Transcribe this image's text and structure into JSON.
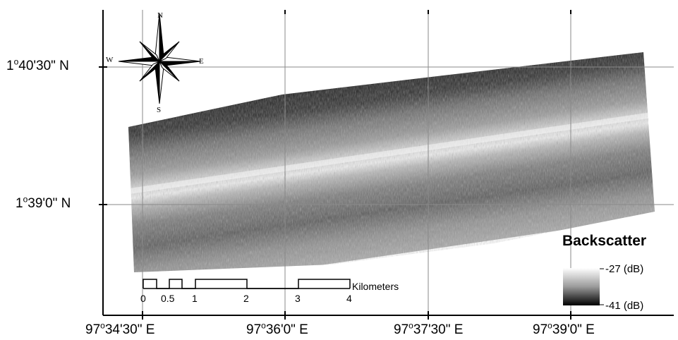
{
  "map": {
    "latitude_labels": [
      {
        "deg": "1",
        "rest": "40'30\" N"
      },
      {
        "deg": "1",
        "rest": "39'0\" N"
      }
    ],
    "longitude_labels": [
      {
        "deg": "97",
        "rest": "34'30\" E"
      },
      {
        "deg": "97",
        "rest": "36'0\" E"
      },
      {
        "deg": "97",
        "rest": "37'30\" E"
      },
      {
        "deg": "97",
        "rest": "39'0\" E"
      }
    ],
    "compass": {
      "n": "N",
      "s": "S",
      "e": "E",
      "w": "W"
    },
    "legend": {
      "title": "Backscatter",
      "high": "-27 (dB)",
      "low": "-41 (dB)"
    },
    "scale_bar": {
      "unit": "Kilometers",
      "ticks": [
        "0",
        "0.5",
        "1",
        "2",
        "3",
        "4"
      ]
    },
    "colors": {
      "frame": "#000000",
      "grid": "#8a8a8a",
      "background": "#ffffff"
    }
  }
}
